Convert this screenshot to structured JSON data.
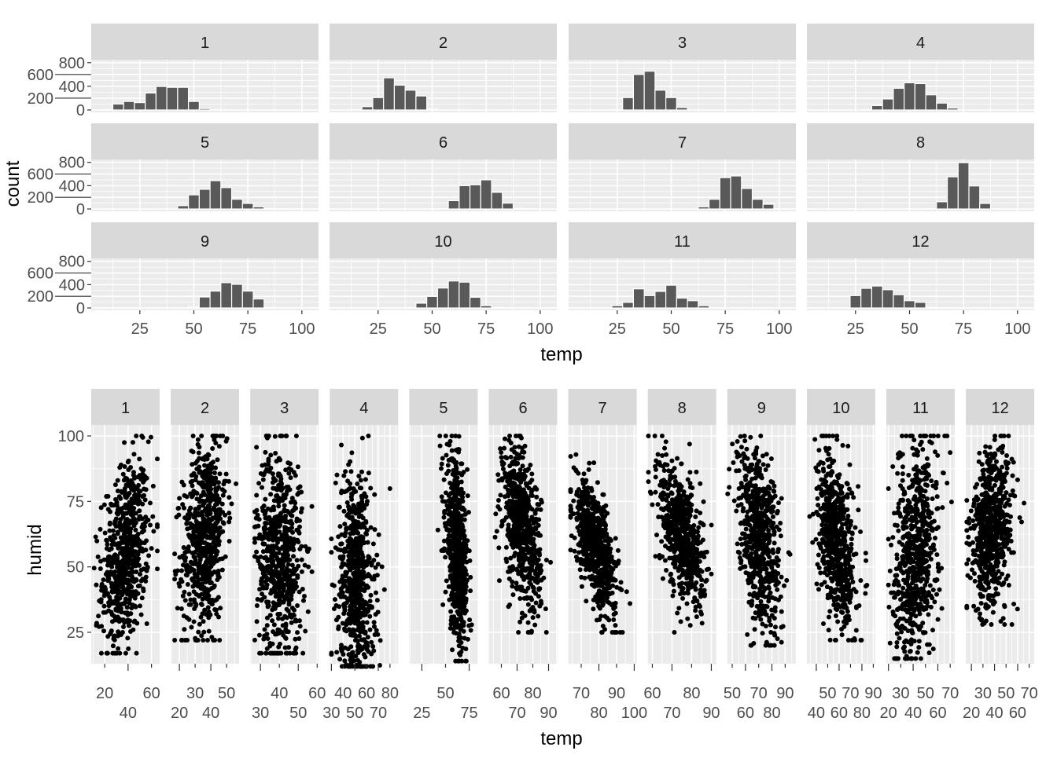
{
  "chart_data": [
    {
      "type": "bar",
      "subtype": "histogram",
      "title": "",
      "xlabel": "temp",
      "ylabel": "count",
      "binwidth": 5,
      "xlim": [
        2.5,
        107.7
      ],
      "ylim": [
        -40,
        850
      ],
      "xticks": [
        "25",
        "50",
        "75",
        "100"
      ],
      "xtick_values": [
        25,
        50,
        75,
        100
      ],
      "yticks": [
        "0",
        "200",
        "400",
        "600",
        "800"
      ],
      "ytick_values": [
        0,
        200,
        400,
        600,
        800
      ],
      "grid": true,
      "facets": [
        {
          "label": "1",
          "centers": [
            10,
            15,
            20,
            25,
            30,
            35,
            40,
            45,
            50,
            55,
            60,
            65
          ],
          "counts": [
            5,
            100,
            144,
            125,
            287,
            397,
            383,
            383,
            144,
            24,
            3,
            2
          ]
        },
        {
          "label": "2",
          "centers": [
            15,
            20,
            25,
            30,
            35,
            40,
            45,
            50
          ],
          "counts": [
            3,
            56,
            209,
            544,
            419,
            335,
            237,
            14
          ]
        },
        {
          "label": "3",
          "centers": [
            25,
            30,
            35,
            40,
            45,
            50,
            55
          ],
          "counts": [
            4,
            209,
            600,
            656,
            335,
            209,
            42
          ]
        },
        {
          "label": "4",
          "centers": [
            30,
            35,
            40,
            45,
            50,
            55,
            60,
            65,
            70
          ],
          "counts": [
            5,
            74,
            186,
            367,
            460,
            446,
            256,
            116,
            33
          ]
        },
        {
          "label": "5",
          "centers": [
            45,
            50,
            55,
            60,
            65,
            70,
            75,
            80,
            85,
            90
          ],
          "counts": [
            57,
            243,
            338,
            486,
            367,
            167,
            95,
            38,
            10,
            3
          ]
        },
        {
          "label": "6",
          "centers": [
            55,
            60,
            65,
            70,
            75,
            80,
            85,
            90,
            95
          ],
          "counts": [
            5,
            143,
            400,
            414,
            500,
            286,
            100,
            10,
            3
          ]
        },
        {
          "label": "7",
          "centers": [
            65,
            70,
            75,
            80,
            85,
            90,
            95,
            100
          ],
          "counts": [
            38,
            167,
            538,
            567,
            352,
            167,
            81,
            3
          ]
        },
        {
          "label": "8",
          "centers": [
            60,
            65,
            70,
            75,
            80,
            85,
            90
          ],
          "counts": [
            5,
            124,
            552,
            795,
            395,
            95,
            3
          ]
        },
        {
          "label": "9",
          "centers": [
            50,
            55,
            60,
            65,
            70,
            75,
            80,
            85
          ],
          "counts": [
            14,
            188,
            289,
            434,
            405,
            289,
            154,
            10
          ]
        },
        {
          "label": "10",
          "centers": [
            40,
            45,
            50,
            55,
            60,
            65,
            70,
            75,
            80,
            85
          ],
          "counts": [
            8,
            82,
            198,
            342,
            463,
            443,
            183,
            39,
            10,
            3
          ]
        },
        {
          "label": "11",
          "centers": [
            25,
            30,
            35,
            40,
            45,
            50,
            55,
            60,
            65,
            70
          ],
          "counts": [
            39,
            96,
            328,
            212,
            284,
            390,
            169,
            125,
            39,
            3
          ]
        },
        {
          "label": "12",
          "centers": [
            20,
            25,
            30,
            35,
            40,
            45,
            50,
            55,
            60,
            65
          ],
          "counts": [
            3,
            212,
            337,
            376,
            313,
            227,
            125,
            96,
            10,
            3
          ]
        }
      ]
    },
    {
      "type": "scatter",
      "title": "",
      "xlabel": "temp",
      "ylabel": "humid",
      "ylim": [
        13,
        104.2
      ],
      "yticks": [
        "25",
        "50",
        "75",
        "100"
      ],
      "ytick_values": [
        25,
        50,
        75,
        100
      ],
      "grid": true,
      "facets": [
        {
          "label": "1",
          "xlim": [
            8.5,
            67
          ],
          "xticks": [
            "20",
            "40",
            "60"
          ],
          "xtick_values": [
            20,
            40,
            60
          ],
          "cloud": {
            "t": [
              11,
              65
            ],
            "t_mean": 38,
            "t_sd": 10,
            "h_min": 17,
            "h_mean": 55,
            "slope": 0.5,
            "h_sd": 17
          }
        },
        {
          "label": "2",
          "xlim": [
            14.5,
            58
          ],
          "xticks": [
            "20",
            "30",
            "40",
            "50"
          ],
          "xtick_values": [
            20,
            30,
            40,
            50
          ],
          "cloud": {
            "t": [
              17,
              56
            ],
            "t_mean": 36,
            "t_sd": 7,
            "h_min": 22,
            "h_mean": 62,
            "slope": 0.6,
            "h_sd": 18
          }
        },
        {
          "label": "3",
          "xlim": [
            24.6,
            60.8
          ],
          "xticks": [
            "30",
            "40",
            "50",
            "60"
          ],
          "xtick_values": [
            30,
            40,
            50,
            60
          ],
          "cloud": {
            "t": [
              27,
              60
            ],
            "t_mean": 40,
            "t_sd": 6,
            "h_min": 17,
            "h_mean": 55,
            "slope": -0.3,
            "h_sd": 20
          }
        },
        {
          "label": "4",
          "xlim": [
            28.6,
            87
          ],
          "xticks": [
            "30",
            "40",
            "50",
            "60",
            "70",
            "80"
          ],
          "xtick_values": [
            30,
            40,
            50,
            60,
            70,
            80
          ],
          "cloud": {
            "t": [
              30,
              85
            ],
            "t_mean": 51,
            "t_sd": 8,
            "h_min": 12,
            "h_mean": 45,
            "slope": -0.3,
            "h_sd": 20
          }
        },
        {
          "label": "5",
          "xlim": [
            11.7,
            84
          ],
          "xticks": [
            "25",
            "50",
            "75"
          ],
          "xtick_values": [
            25,
            50,
            75
          ],
          "cloud": {
            "t": [
              41,
              82
            ],
            "t_mean": 62,
            "t_sd": 6,
            "h_min": 14,
            "h_mean": 55,
            "slope": -1.2,
            "h_sd": 16
          }
        },
        {
          "label": "6",
          "xlim": [
            52,
            95.5
          ],
          "xticks": [
            "60",
            "70",
            "80",
            "90"
          ],
          "xtick_values": [
            60,
            70,
            80,
            90
          ],
          "cloud": {
            "t": [
              56,
              95
            ],
            "t_mean": 73,
            "t_sd": 6,
            "h_min": 25,
            "h_mean": 65,
            "slope": -1.0,
            "h_sd": 14
          }
        },
        {
          "label": "7",
          "xlim": [
            62.7,
            101.4
          ],
          "xticks": [
            "70",
            "80",
            "90",
            "100"
          ],
          "xtick_values": [
            70,
            80,
            90,
            100
          ],
          "cloud": {
            "t": [
              64,
              100
            ],
            "t_mean": 78,
            "t_sd": 6,
            "h_min": 25,
            "h_mean": 58,
            "slope": -1.3,
            "h_sd": 10
          }
        },
        {
          "label": "8",
          "xlim": [
            57.7,
            92.5
          ],
          "xticks": [
            "60",
            "70",
            "80",
            "90"
          ],
          "xtick_values": [
            60,
            70,
            80,
            90
          ],
          "cloud": {
            "t": [
              58,
              92
            ],
            "t_mean": 75,
            "t_sd": 5.5,
            "h_min": 25,
            "h_mean": 62,
            "slope": -1.2,
            "h_sd": 12
          }
        },
        {
          "label": "9",
          "xlim": [
            46.3,
            98
          ],
          "xticks": [
            "50",
            "60",
            "70",
            "80",
            "90"
          ],
          "xtick_values": [
            50,
            60,
            70,
            80,
            90
          ],
          "cloud": {
            "t": [
              46,
              98
            ],
            "t_mean": 70,
            "t_sd": 8,
            "h_min": 20,
            "h_mean": 62,
            "slope": -0.8,
            "h_sd": 16
          }
        },
        {
          "label": "10",
          "xlim": [
            31.7,
            91.7
          ],
          "xticks": [
            "40",
            "50",
            "60",
            "70",
            "80",
            "90"
          ],
          "xtick_values": [
            40,
            50,
            60,
            70,
            80,
            90
          ],
          "cloud": {
            "t": [
              32,
              90
            ],
            "t_mean": 58,
            "t_sd": 8,
            "h_min": 22,
            "h_mean": 60,
            "slope": -0.6,
            "h_sd": 15
          }
        },
        {
          "label": "11",
          "xlim": [
            18.3,
            73.7
          ],
          "xticks": [
            "20",
            "30",
            "40",
            "50",
            "60",
            "70"
          ],
          "xtick_values": [
            20,
            30,
            40,
            50,
            60,
            70
          ],
          "cloud": {
            "t": [
              20,
              73
            ],
            "t_mean": 42,
            "t_sd": 9,
            "h_min": 15,
            "h_mean": 55,
            "slope": 0.6,
            "h_sd": 20
          }
        },
        {
          "label": "12",
          "xlim": [
            15.2,
            74.4
          ],
          "xticks": [
            "20",
            "30",
            "40",
            "50",
            "60",
            "70"
          ],
          "xtick_values": [
            20,
            30,
            40,
            50,
            60,
            70
          ],
          "cloud": {
            "t": [
              16,
              73
            ],
            "t_mean": 38,
            "t_sd": 9,
            "h_min": 28,
            "h_mean": 65,
            "slope": 0.3,
            "h_sd": 15
          }
        }
      ]
    }
  ],
  "colors": {
    "panel": "#EBEBEB",
    "strip": "#D9D9D9",
    "grid": "#FFFFFF",
    "bar": "#595959",
    "point": "#000000"
  }
}
